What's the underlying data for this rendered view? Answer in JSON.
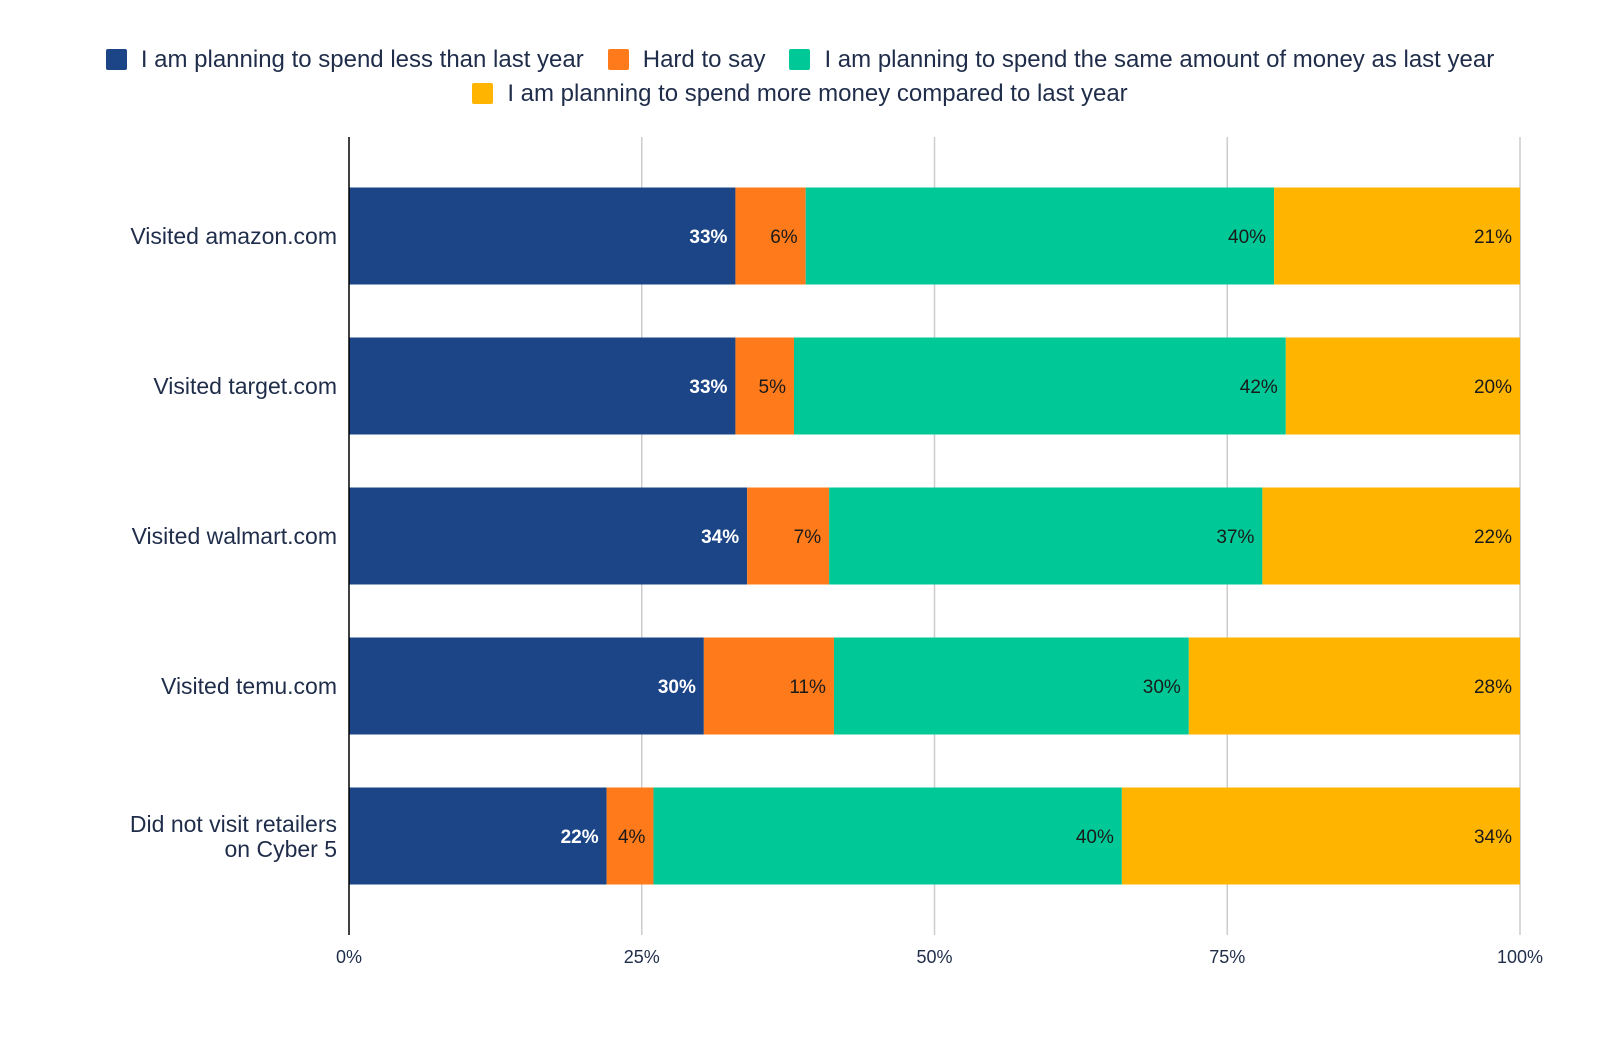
{
  "chart_data": {
    "type": "bar",
    "orientation": "horizontal",
    "stacked": "percent",
    "categories": [
      "Visited amazon.com",
      "Visited target.com",
      "Visited walmart.com",
      "Visited temu.com",
      "Did not visit retailers on Cyber 5"
    ],
    "series": [
      {
        "name": "I am planning to spend less than last year",
        "color": "#1c4587",
        "values": [
          33,
          33,
          34,
          30,
          22
        ]
      },
      {
        "name": "Hard to say",
        "color": "#ff7a1a",
        "values": [
          6,
          5,
          7,
          11,
          4
        ]
      },
      {
        "name": "I am planning to spend the same amount of money as last year",
        "color": "#00c897",
        "values": [
          40,
          42,
          37,
          30,
          40
        ]
      },
      {
        "name": "I am planning to spend more money compared to last year",
        "color": "#ffb400",
        "values": [
          21,
          20,
          22,
          28,
          34
        ]
      }
    ],
    "xlim": [
      0,
      100
    ],
    "xticks": [
      "0%",
      "25%",
      "50%",
      "75%",
      "100%"
    ],
    "grid": true,
    "legend": "top",
    "data_label_suffix": "%"
  }
}
